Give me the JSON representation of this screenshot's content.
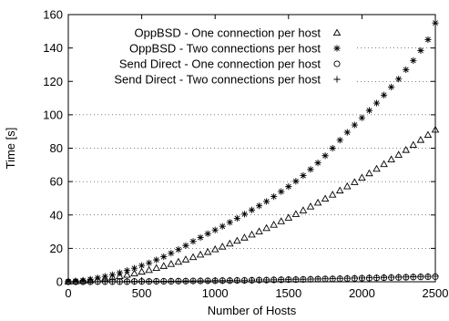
{
  "chart_data": {
    "type": "scatter",
    "title": "",
    "xlabel": "Number of Hosts",
    "ylabel": "Time [s]",
    "xlim": [
      0,
      2500
    ],
    "ylim": [
      0,
      160
    ],
    "x_ticks": [
      0,
      500,
      1000,
      1500,
      2000,
      2500
    ],
    "y_ticks": [
      0,
      20,
      40,
      60,
      80,
      100,
      120,
      140,
      160
    ],
    "grid": "horizontal dotted",
    "legend_position": "top-right",
    "x": [
      0,
      50,
      100,
      150,
      200,
      250,
      300,
      350,
      400,
      450,
      500,
      550,
      600,
      650,
      700,
      750,
      800,
      850,
      900,
      950,
      1000,
      1050,
      1100,
      1150,
      1200,
      1250,
      1300,
      1350,
      1400,
      1450,
      1500,
      1550,
      1600,
      1650,
      1700,
      1750,
      1800,
      1850,
      1900,
      1950,
      2000,
      2050,
      2100,
      2150,
      2200,
      2250,
      2300,
      2350,
      2400,
      2450,
      2500
    ],
    "series": [
      {
        "name": "OppBSD - One connection per host",
        "marker": "triangle",
        "values": [
          0.1,
          0.2,
          0.5,
          0.9,
          1.4,
          2.0,
          2.6,
          3.3,
          4.1,
          5.0,
          6.0,
          7.0,
          8.2,
          9.4,
          10.6,
          11.9,
          13.3,
          14.7,
          16.2,
          17.8,
          19.4,
          21.0,
          22.8,
          24.5,
          26.4,
          28.2,
          30.1,
          32.1,
          34.1,
          36.2,
          38.3,
          40.5,
          42.7,
          45.0,
          47.3,
          49.7,
          52.1,
          54.6,
          57.1,
          59.6,
          62.3,
          64.9,
          67.6,
          70.4,
          73.2,
          76.0,
          78.9,
          81.9,
          84.9,
          87.9,
          91.0
        ]
      },
      {
        "name": "OppBSD - Two connections per host",
        "marker": "star",
        "values": [
          0.1,
          0.4,
          0.8,
          1.5,
          2.3,
          3.2,
          4.2,
          5.4,
          6.7,
          8.1,
          9.7,
          11.3,
          13.1,
          15.0,
          17.1,
          19.3,
          21.7,
          24.2,
          26.5,
          28.8,
          31.0,
          33.2,
          35.6,
          38.0,
          40.5,
          43.0,
          45.5,
          48.1,
          51.0,
          54.0,
          57.0,
          60.2,
          63.6,
          67.3,
          71.2,
          75.5,
          80.0,
          84.8,
          89.5,
          93.9,
          98.2,
          102.6,
          107.0,
          111.8,
          116.6,
          121.4,
          127.0,
          132.5,
          138.5,
          145.0,
          155.0
        ]
      },
      {
        "name": "Send Direct - One connection per host",
        "marker": "circle",
        "values": [
          0.0,
          0.0,
          0.0,
          0.0,
          0.1,
          0.1,
          0.1,
          0.1,
          0.1,
          0.2,
          0.2,
          0.2,
          0.3,
          0.3,
          0.3,
          0.4,
          0.4,
          0.5,
          0.5,
          0.6,
          0.6,
          0.7,
          0.7,
          0.8,
          0.8,
          0.9,
          1.0,
          1.0,
          1.1,
          1.2,
          1.3,
          1.3,
          1.4,
          1.5,
          1.6,
          1.7,
          1.7,
          1.8,
          1.9,
          2.0,
          2.1,
          2.2,
          2.3,
          2.4,
          2.5,
          2.6,
          2.7,
          2.8,
          2.9,
          3.0,
          3.1
        ]
      },
      {
        "name": "Send Direct - Two connections per host",
        "marker": "plus",
        "values": [
          0.0,
          0.0,
          0.0,
          0.0,
          0.1,
          0.1,
          0.1,
          0.1,
          0.2,
          0.2,
          0.2,
          0.3,
          0.3,
          0.3,
          0.4,
          0.4,
          0.5,
          0.5,
          0.6,
          0.6,
          0.7,
          0.7,
          0.8,
          0.9,
          0.9,
          1.0,
          1.1,
          1.1,
          1.2,
          1.3,
          1.4,
          1.5,
          1.5,
          1.6,
          1.7,
          1.8,
          1.9,
          2.0,
          2.1,
          2.2,
          2.3,
          2.4,
          2.5,
          2.6,
          2.7,
          2.8,
          2.9,
          3.0,
          3.1,
          3.2,
          3.3
        ]
      }
    ]
  }
}
